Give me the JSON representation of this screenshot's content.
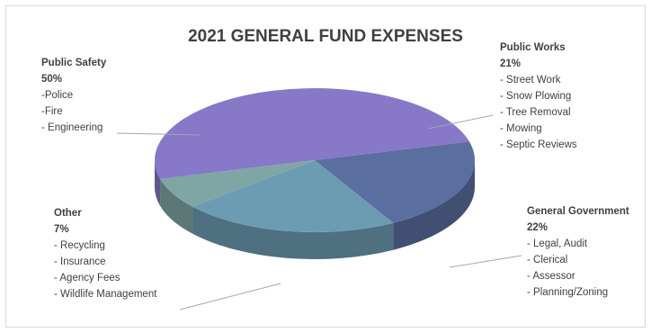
{
  "colors": {
    "public_safety": "#8878c8",
    "public_works": "#5a6ea0",
    "general_government": "#6c9cb2",
    "other": "#7fa6a4",
    "leader": "#a6a6a6",
    "text": "#404040"
  },
  "chart_data": {
    "type": "pie",
    "title": "2021 GENERAL FUND EXPENSES",
    "style": "3d",
    "legend": "none (callout labels)",
    "slices": [
      {
        "key": "public_works",
        "label": "Public Works",
        "value": 21,
        "percent_label": "21%",
        "items": [
          "- Street Work",
          "- Snow Plowing",
          "- Tree Removal",
          "- Mowing",
          "- Septic Reviews"
        ]
      },
      {
        "key": "general_government",
        "label": "General Government",
        "value": 22,
        "percent_label": "22%",
        "items": [
          "- Legal, Audit",
          "- Clerical",
          "- Assessor",
          "- Planning/Zoning"
        ]
      },
      {
        "key": "other",
        "label": "Other",
        "value": 7,
        "percent_label": "7%",
        "items": [
          "- Recycling",
          "- Insurance",
          "- Agency Fees",
          "- Wildlife Management"
        ]
      },
      {
        "key": "public_safety",
        "label": "Public Safety",
        "value": 50,
        "percent_label": "50%",
        "items": [
          "-Police",
          "-Fire",
          "- Engineering"
        ]
      }
    ]
  }
}
